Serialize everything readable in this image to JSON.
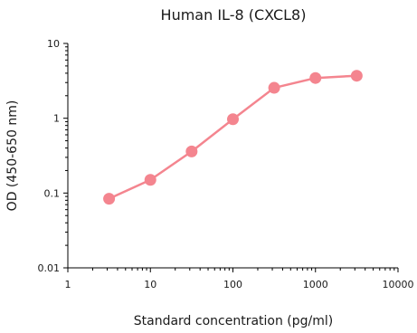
{
  "chart_data": {
    "type": "line",
    "title": "Human IL-8 (CXCL8)",
    "xlabel": "Standard concentration (pg/ml)",
    "ylabel": "OD (450-650 nm)",
    "x_scale": "log",
    "y_scale": "log",
    "xlim": [
      1,
      10000
    ],
    "ylim": [
      0.01,
      10
    ],
    "x_ticks": [
      "1",
      "10",
      "100",
      "1000",
      "10000"
    ],
    "y_ticks": [
      "0.01",
      "0.1",
      "1",
      "10"
    ],
    "grid": false,
    "series": [
      {
        "color": "#f4858f",
        "points": [
          {
            "x": 3.16,
            "y": 0.084
          },
          {
            "x": 10,
            "y": 0.15
          },
          {
            "x": 31.6,
            "y": 0.36
          },
          {
            "x": 100,
            "y": 0.97
          },
          {
            "x": 316,
            "y": 2.55
          },
          {
            "x": 1000,
            "y": 3.45
          },
          {
            "x": 3160,
            "y": 3.7
          }
        ]
      }
    ]
  }
}
